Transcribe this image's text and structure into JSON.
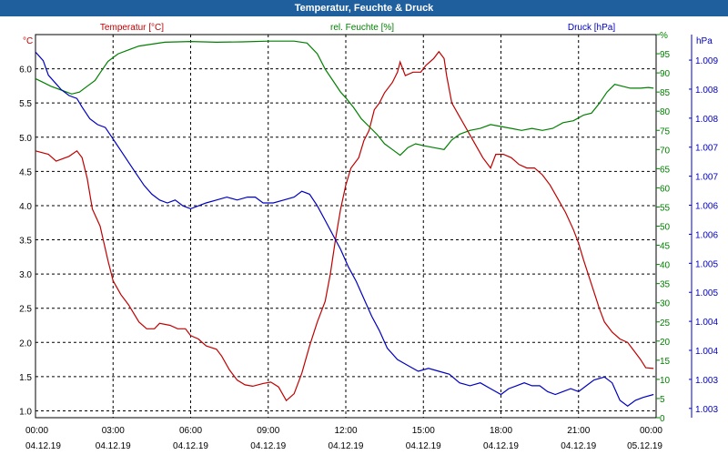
{
  "window": {
    "title": "Temperatur, Feuchte & Druck"
  },
  "chart_data": {
    "type": "line",
    "title": "Temperatur, Feuchte & Druck",
    "grid": true,
    "x": {
      "ticks": [
        {
          "time": "00:00",
          "date": "04.12.19"
        },
        {
          "time": "03:00",
          "date": "04.12.19"
        },
        {
          "time": "06:00",
          "date": "04.12.19"
        },
        {
          "time": "09:00",
          "date": "04.12.19"
        },
        {
          "time": "12:00",
          "date": "04.12.19"
        },
        {
          "time": "15:00",
          "date": "04.12.19"
        },
        {
          "time": "18:00",
          "date": "04.12.19"
        },
        {
          "time": "21:00",
          "date": "04.12.19"
        },
        {
          "time": "00:00",
          "date": "05.12.19"
        }
      ],
      "range_hours": [
        0,
        24
      ]
    },
    "axes": {
      "temperature": {
        "unit": "°C",
        "range": [
          0.9,
          6.5
        ],
        "ticks": [
          "1.0",
          "1.5",
          "2.0",
          "2.5",
          "3.0",
          "3.5",
          "4.0",
          "4.5",
          "5.0",
          "5.5",
          "6.0"
        ],
        "color": "#c00000"
      },
      "humidity": {
        "unit": "%",
        "range": [
          0,
          100
        ],
        "ticks": [
          "0",
          "5",
          "10",
          "15",
          "20",
          "25",
          "30",
          "35",
          "40",
          "45",
          "50",
          "55",
          "60",
          "65",
          "70",
          "75",
          "80",
          "85",
          "90",
          "95",
          "%"
        ],
        "color": "#008000"
      },
      "pressure": {
        "unit": "hPa",
        "range": [
          1002.7,
          1009.3
        ],
        "ticks": [
          "1.003",
          "1.003",
          "1.004",
          "1.004",
          "1.005",
          "1.005",
          "1.006",
          "1.006",
          "1.007",
          "1.007",
          "1.008",
          "1.008",
          "1.009"
        ],
        "color": "#0000c0"
      }
    },
    "legend": [
      {
        "name": "Temperatur [°C]",
        "color": "#c00000"
      },
      {
        "name": "rel. Feuchte [%]",
        "color": "#008000"
      },
      {
        "name": "Druck [hPa]",
        "color": "#0000c0"
      }
    ],
    "series": [
      {
        "name": "Temperatur [°C]",
        "axis": "temperature",
        "color": "#c00000",
        "points": [
          [
            0,
            4.8
          ],
          [
            0.5,
            4.75
          ],
          [
            0.8,
            4.65
          ],
          [
            1.3,
            4.72
          ],
          [
            1.6,
            4.8
          ],
          [
            1.8,
            4.7
          ],
          [
            2.0,
            4.4
          ],
          [
            2.2,
            3.95
          ],
          [
            2.5,
            3.7
          ],
          [
            2.8,
            3.2
          ],
          [
            3.0,
            2.9
          ],
          [
            3.3,
            2.7
          ],
          [
            3.6,
            2.55
          ],
          [
            4.0,
            2.3
          ],
          [
            4.3,
            2.2
          ],
          [
            4.6,
            2.2
          ],
          [
            4.8,
            2.28
          ],
          [
            5.2,
            2.25
          ],
          [
            5.5,
            2.2
          ],
          [
            5.8,
            2.2
          ],
          [
            6.0,
            2.1
          ],
          [
            6.3,
            2.05
          ],
          [
            6.6,
            1.95
          ],
          [
            7.0,
            1.9
          ],
          [
            7.2,
            1.8
          ],
          [
            7.5,
            1.6
          ],
          [
            7.8,
            1.45
          ],
          [
            8.1,
            1.38
          ],
          [
            8.4,
            1.36
          ],
          [
            8.8,
            1.4
          ],
          [
            9.1,
            1.42
          ],
          [
            9.4,
            1.35
          ],
          [
            9.7,
            1.15
          ],
          [
            10.0,
            1.25
          ],
          [
            10.3,
            1.55
          ],
          [
            10.6,
            1.95
          ],
          [
            10.9,
            2.3
          ],
          [
            11.2,
            2.6
          ],
          [
            11.4,
            3.0
          ],
          [
            11.6,
            3.5
          ],
          [
            11.8,
            3.95
          ],
          [
            12.0,
            4.3
          ],
          [
            12.2,
            4.55
          ],
          [
            12.5,
            4.7
          ],
          [
            12.7,
            4.95
          ],
          [
            12.9,
            5.1
          ],
          [
            13.1,
            5.4
          ],
          [
            13.3,
            5.5
          ],
          [
            13.5,
            5.65
          ],
          [
            13.8,
            5.8
          ],
          [
            14.0,
            5.95
          ],
          [
            14.1,
            6.1
          ],
          [
            14.3,
            5.9
          ],
          [
            14.6,
            5.95
          ],
          [
            14.9,
            5.95
          ],
          [
            15.1,
            6.05
          ],
          [
            15.4,
            6.15
          ],
          [
            15.6,
            6.25
          ],
          [
            15.8,
            6.15
          ],
          [
            15.9,
            5.9
          ],
          [
            16.1,
            5.5
          ],
          [
            16.4,
            5.3
          ],
          [
            16.7,
            5.1
          ],
          [
            17.0,
            4.9
          ],
          [
            17.3,
            4.7
          ],
          [
            17.6,
            4.55
          ],
          [
            17.8,
            4.75
          ],
          [
            18.1,
            4.75
          ],
          [
            18.4,
            4.7
          ],
          [
            18.7,
            4.6
          ],
          [
            19.0,
            4.55
          ],
          [
            19.3,
            4.55
          ],
          [
            19.6,
            4.45
          ],
          [
            19.9,
            4.3
          ],
          [
            20.2,
            4.1
          ],
          [
            20.5,
            3.9
          ],
          [
            20.8,
            3.65
          ],
          [
            21.0,
            3.45
          ],
          [
            21.2,
            3.2
          ],
          [
            21.5,
            2.85
          ],
          [
            21.8,
            2.5
          ],
          [
            22.0,
            2.3
          ],
          [
            22.3,
            2.15
          ],
          [
            22.6,
            2.05
          ],
          [
            22.9,
            2.0
          ],
          [
            23.2,
            1.85
          ],
          [
            23.4,
            1.75
          ],
          [
            23.6,
            1.63
          ],
          [
            23.9,
            1.62
          ]
        ]
      },
      {
        "name": "rel. Feuchte [%]",
        "axis": "humidity",
        "color": "#008000",
        "points": [
          [
            0,
            88.5
          ],
          [
            0.3,
            87.5
          ],
          [
            0.6,
            86.5
          ],
          [
            1.0,
            85.5
          ],
          [
            1.4,
            84.5
          ],
          [
            1.7,
            85
          ],
          [
            2.0,
            86.5
          ],
          [
            2.3,
            88
          ],
          [
            2.5,
            90
          ],
          [
            2.8,
            93
          ],
          [
            3.2,
            95
          ],
          [
            3.6,
            96
          ],
          [
            4.0,
            97
          ],
          [
            4.5,
            97.5
          ],
          [
            5.0,
            98
          ],
          [
            6.0,
            98.2
          ],
          [
            7.0,
            98.0
          ],
          [
            8.0,
            98.1
          ],
          [
            9.0,
            98.3
          ],
          [
            10.0,
            98.3
          ],
          [
            10.5,
            97.8
          ],
          [
            10.9,
            95
          ],
          [
            11.2,
            91
          ],
          [
            11.5,
            88
          ],
          [
            11.8,
            85
          ],
          [
            12.0,
            83.5
          ],
          [
            12.3,
            81
          ],
          [
            12.6,
            78
          ],
          [
            12.9,
            76
          ],
          [
            13.2,
            74
          ],
          [
            13.5,
            71.5
          ],
          [
            13.8,
            70
          ],
          [
            14.1,
            68.5
          ],
          [
            14.4,
            70.5
          ],
          [
            14.7,
            71.5
          ],
          [
            15.0,
            71
          ],
          [
            15.4,
            70.5
          ],
          [
            15.8,
            70
          ],
          [
            16.1,
            72.5
          ],
          [
            16.4,
            74
          ],
          [
            16.8,
            75
          ],
          [
            17.2,
            75.5
          ],
          [
            17.6,
            76.5
          ],
          [
            18.0,
            76
          ],
          [
            18.4,
            75.5
          ],
          [
            18.8,
            75
          ],
          [
            19.2,
            75.5
          ],
          [
            19.6,
            75
          ],
          [
            20.0,
            75.5
          ],
          [
            20.4,
            77
          ],
          [
            20.8,
            77.5
          ],
          [
            21.2,
            79
          ],
          [
            21.5,
            79.5
          ],
          [
            21.8,
            82
          ],
          [
            22.1,
            85
          ],
          [
            22.4,
            87
          ],
          [
            22.7,
            86.5
          ],
          [
            23.0,
            86
          ],
          [
            23.4,
            86
          ],
          [
            23.7,
            86.2
          ],
          [
            23.9,
            86
          ]
        ]
      },
      {
        "name": "Druck [hPa]",
        "axis": "pressure",
        "color": "#0000c0",
        "points": [
          [
            0,
            1009.0
          ],
          [
            0.3,
            1008.85
          ],
          [
            0.5,
            1008.6
          ],
          [
            0.8,
            1008.45
          ],
          [
            1.0,
            1008.35
          ],
          [
            1.3,
            1008.25
          ],
          [
            1.6,
            1008.2
          ],
          [
            1.8,
            1008.05
          ],
          [
            2.1,
            1007.85
          ],
          [
            2.4,
            1007.75
          ],
          [
            2.7,
            1007.7
          ],
          [
            3.0,
            1007.5
          ],
          [
            3.3,
            1007.3
          ],
          [
            3.6,
            1007.1
          ],
          [
            3.9,
            1006.9
          ],
          [
            4.2,
            1006.7
          ],
          [
            4.5,
            1006.55
          ],
          [
            4.8,
            1006.45
          ],
          [
            5.1,
            1006.4
          ],
          [
            5.4,
            1006.45
          ],
          [
            5.7,
            1006.35
          ],
          [
            6.0,
            1006.3
          ],
          [
            6.3,
            1006.35
          ],
          [
            6.6,
            1006.4
          ],
          [
            7.0,
            1006.45
          ],
          [
            7.4,
            1006.5
          ],
          [
            7.8,
            1006.45
          ],
          [
            8.2,
            1006.5
          ],
          [
            8.5,
            1006.5
          ],
          [
            8.8,
            1006.4
          ],
          [
            9.2,
            1006.4
          ],
          [
            9.6,
            1006.45
          ],
          [
            10.0,
            1006.5
          ],
          [
            10.3,
            1006.6
          ],
          [
            10.6,
            1006.55
          ],
          [
            10.9,
            1006.35
          ],
          [
            11.2,
            1006.1
          ],
          [
            11.5,
            1005.85
          ],
          [
            11.8,
            1005.6
          ],
          [
            12.1,
            1005.3
          ],
          [
            12.4,
            1005.05
          ],
          [
            12.7,
            1004.75
          ],
          [
            13.0,
            1004.45
          ],
          [
            13.3,
            1004.2
          ],
          [
            13.6,
            1003.9
          ],
          [
            14.0,
            1003.7
          ],
          [
            14.4,
            1003.6
          ],
          [
            14.8,
            1003.5
          ],
          [
            15.2,
            1003.55
          ],
          [
            15.6,
            1003.5
          ],
          [
            16.0,
            1003.45
          ],
          [
            16.4,
            1003.3
          ],
          [
            16.8,
            1003.25
          ],
          [
            17.2,
            1003.3
          ],
          [
            17.6,
            1003.2
          ],
          [
            18.0,
            1003.1
          ],
          [
            18.3,
            1003.2
          ],
          [
            18.6,
            1003.25
          ],
          [
            18.9,
            1003.3
          ],
          [
            19.2,
            1003.25
          ],
          [
            19.5,
            1003.25
          ],
          [
            19.8,
            1003.15
          ],
          [
            20.1,
            1003.1
          ],
          [
            20.4,
            1003.15
          ],
          [
            20.7,
            1003.2
          ],
          [
            21.0,
            1003.15
          ],
          [
            21.3,
            1003.25
          ],
          [
            21.6,
            1003.35
          ],
          [
            22.0,
            1003.4
          ],
          [
            22.3,
            1003.3
          ],
          [
            22.6,
            1003.0
          ],
          [
            22.9,
            1002.9
          ],
          [
            23.2,
            1003.0
          ],
          [
            23.5,
            1003.05
          ],
          [
            23.9,
            1003.1
          ]
        ]
      }
    ]
  }
}
